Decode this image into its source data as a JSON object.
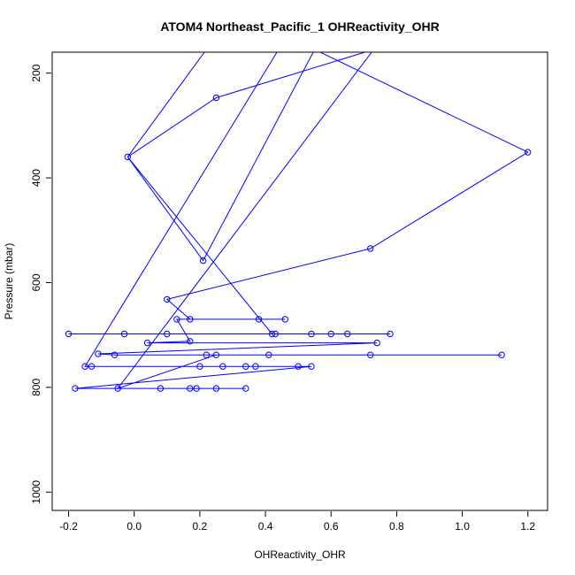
{
  "chart_data": {
    "type": "line",
    "title": "ATOM4 Northeast_Pacific_1 OHReactivity_OHR",
    "xlabel": "OHReactivity_OHR",
    "ylabel": "Pressure (mbar)",
    "xlim": [
      -0.25,
      1.26
    ],
    "ylim": [
      1035,
      160
    ],
    "y_inverted": true,
    "x_ticks": [
      -0.2,
      0.0,
      0.2,
      0.4,
      0.6,
      0.8,
      1.0,
      1.2
    ],
    "x_tick_labels": [
      "-0.2",
      "0.0",
      "0.2",
      "0.4",
      "0.6",
      "0.8",
      "1.0",
      "1.2"
    ],
    "y_ticks": [
      200,
      400,
      600,
      800,
      1000
    ],
    "y_tick_labels": [
      "200",
      "400",
      "600",
      "800",
      "1000"
    ],
    "grid": false,
    "legend": "none",
    "series": [
      {
        "color": "#0000ff",
        "marker": "open-circle",
        "points": [
          {
            "x": 0.34,
            "y": 802
          },
          {
            "x": 0.25,
            "y": 802
          },
          {
            "x": 0.19,
            "y": 802
          },
          {
            "x": 0.17,
            "y": 802
          },
          {
            "x": 0.08,
            "y": 802
          },
          {
            "x": -0.05,
            "y": 802
          },
          {
            "x": -0.18,
            "y": 802
          },
          {
            "x": 0.54,
            "y": 760
          },
          {
            "x": 0.5,
            "y": 760
          },
          {
            "x": 0.37,
            "y": 760
          },
          {
            "x": 0.34,
            "y": 760
          },
          {
            "x": 0.27,
            "y": 760
          },
          {
            "x": 0.2,
            "y": 760
          },
          {
            "x": 0.2,
            "y": 760
          },
          {
            "x": -0.13,
            "y": 760
          },
          {
            "x": -0.15,
            "y": 760
          },
          {
            "x": 0.44,
            "y": 155
          },
          {
            "x": 0.22,
            "y": 155
          },
          {
            "x": -0.02,
            "y": 360
          },
          {
            "x": 0.25,
            "y": 247
          },
          {
            "x": 0.73,
            "y": 155
          },
          {
            "x": -0.05,
            "y": 802
          },
          {
            "x": 0.25,
            "y": 738
          },
          {
            "x": 0.22,
            "y": 738
          },
          {
            "x": 0.41,
            "y": 738
          },
          {
            "x": 0.72,
            "y": 738
          },
          {
            "x": 1.12,
            "y": 738
          },
          {
            "x": -0.06,
            "y": 738
          },
          {
            "x": -0.11,
            "y": 736
          },
          {
            "x": 0.74,
            "y": 715
          },
          {
            "x": 0.04,
            "y": 715
          },
          {
            "x": 0.17,
            "y": 712
          },
          {
            "x": 0.13,
            "y": 670
          },
          {
            "x": 0.17,
            "y": 670
          },
          {
            "x": 0.38,
            "y": 670
          },
          {
            "x": 0.46,
            "y": 670
          },
          {
            "x": 0.17,
            "y": 670
          },
          {
            "x": 0.1,
            "y": 632
          },
          {
            "x": 0.72,
            "y": 535
          },
          {
            "x": 1.2,
            "y": 351
          },
          {
            "x": 0.55,
            "y": 155
          },
          {
            "x": 0.21,
            "y": 558
          },
          {
            "x": -0.02,
            "y": 360
          },
          {
            "x": 0.42,
            "y": 698
          },
          {
            "x": 0.43,
            "y": 698
          },
          {
            "x": 0.54,
            "y": 698
          },
          {
            "x": 0.6,
            "y": 698
          },
          {
            "x": 0.65,
            "y": 698
          },
          {
            "x": 0.78,
            "y": 698
          },
          {
            "x": 0.1,
            "y": 698
          },
          {
            "x": -0.03,
            "y": 698
          },
          {
            "x": -0.2,
            "y": 698
          }
        ],
        "markers": [
          {
            "x": 0.34,
            "y": 802
          },
          {
            "x": 0.25,
            "y": 802
          },
          {
            "x": 0.19,
            "y": 802
          },
          {
            "x": 0.17,
            "y": 802
          },
          {
            "x": 0.08,
            "y": 802
          },
          {
            "x": -0.05,
            "y": 802
          },
          {
            "x": -0.18,
            "y": 802
          },
          {
            "x": 0.54,
            "y": 760
          },
          {
            "x": 0.5,
            "y": 760
          },
          {
            "x": 0.37,
            "y": 760
          },
          {
            "x": 0.34,
            "y": 760
          },
          {
            "x": 0.27,
            "y": 760
          },
          {
            "x": 0.2,
            "y": 760
          },
          {
            "x": -0.13,
            "y": 760
          },
          {
            "x": -0.15,
            "y": 760
          },
          {
            "x": -0.02,
            "y": 360
          },
          {
            "x": 0.25,
            "y": 247
          },
          {
            "x": 0.25,
            "y": 738
          },
          {
            "x": 0.22,
            "y": 738
          },
          {
            "x": 0.41,
            "y": 738
          },
          {
            "x": 0.72,
            "y": 738
          },
          {
            "x": 1.12,
            "y": 738
          },
          {
            "x": -0.06,
            "y": 738
          },
          {
            "x": -0.11,
            "y": 736
          },
          {
            "x": 0.74,
            "y": 715
          },
          {
            "x": 0.04,
            "y": 715
          },
          {
            "x": 0.17,
            "y": 712
          },
          {
            "x": 0.13,
            "y": 670
          },
          {
            "x": 0.17,
            "y": 670
          },
          {
            "x": 0.38,
            "y": 670
          },
          {
            "x": 0.46,
            "y": 670
          },
          {
            "x": 0.1,
            "y": 632
          },
          {
            "x": 0.72,
            "y": 535
          },
          {
            "x": 1.2,
            "y": 351
          },
          {
            "x": 0.21,
            "y": 558
          },
          {
            "x": 0.42,
            "y": 698
          },
          {
            "x": 0.43,
            "y": 698
          },
          {
            "x": 0.54,
            "y": 698
          },
          {
            "x": 0.6,
            "y": 698
          },
          {
            "x": 0.65,
            "y": 698
          },
          {
            "x": 0.78,
            "y": 698
          },
          {
            "x": 0.1,
            "y": 698
          },
          {
            "x": -0.03,
            "y": 698
          },
          {
            "x": -0.2,
            "y": 698
          }
        ]
      }
    ]
  }
}
